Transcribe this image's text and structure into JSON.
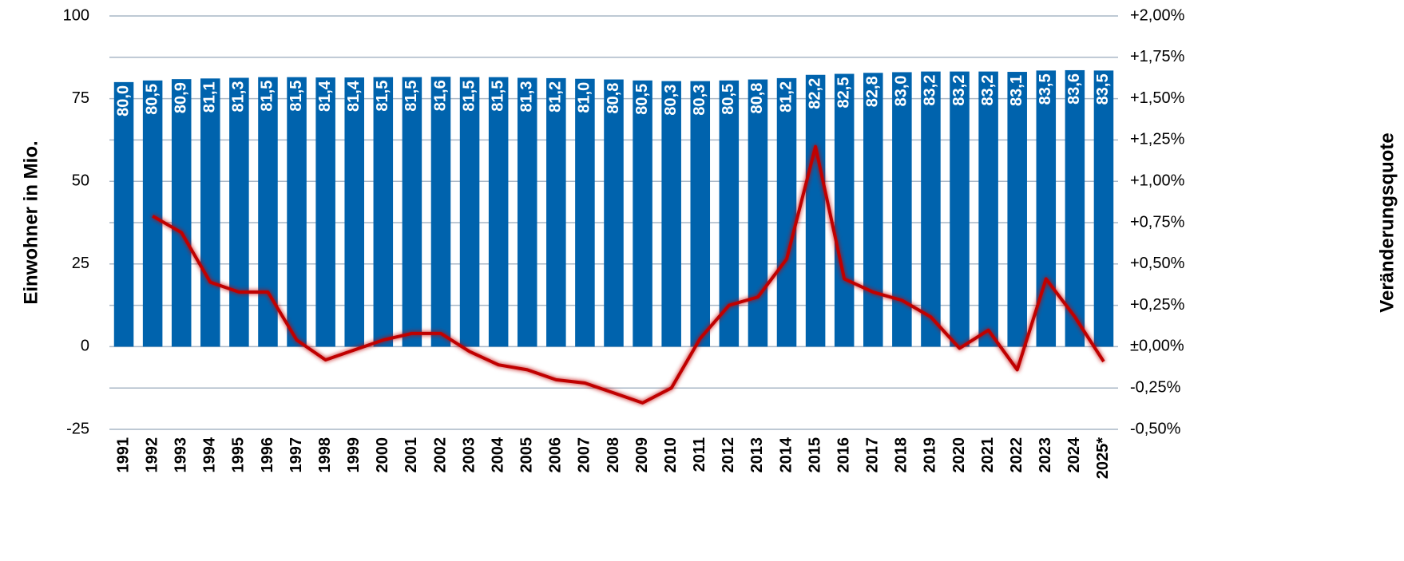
{
  "chart_data": {
    "type": "bar_line",
    "ylabel": "Einwohner in Mio.",
    "y2label": "Veränderungsquote",
    "categories": [
      "1991",
      "1992",
      "1993",
      "1994",
      "1995",
      "1996",
      "1997",
      "1998",
      "1999",
      "2000",
      "2001",
      "2002",
      "2003",
      "2004",
      "2005",
      "2006",
      "2007",
      "2008",
      "2009",
      "2010",
      "2011",
      "2012",
      "2013",
      "2014",
      "2015",
      "2016",
      "2017",
      "2018",
      "2019",
      "2020",
      "2021",
      "2022",
      "2023",
      "2024",
      "2025*"
    ],
    "series": [
      {
        "type": "bar",
        "color": "#0063ad",
        "values": [
          80.0,
          80.5,
          80.9,
          81.1,
          81.3,
          81.5,
          81.5,
          81.4,
          81.4,
          81.5,
          81.5,
          81.6,
          81.5,
          81.5,
          81.3,
          81.2,
          81.0,
          80.8,
          80.5,
          80.3,
          80.3,
          80.5,
          80.8,
          81.2,
          82.2,
          82.5,
          82.8,
          83.0,
          83.2,
          83.2,
          83.2,
          83.1,
          83.5,
          83.6,
          83.5
        ],
        "value_labels": [
          "80,0",
          "80,5",
          "80,9",
          "81,1",
          "81,3",
          "81,5",
          "81,5",
          "81,4",
          "81,4",
          "81,5",
          "81,5",
          "81,6",
          "81,5",
          "81,5",
          "81,3",
          "81,2",
          "81,0",
          "80,8",
          "80,5",
          "80,3",
          "80,3",
          "80,5",
          "80,8",
          "81,2",
          "82,2",
          "82,5",
          "82,8",
          "83,0",
          "83,2",
          "83,2",
          "83,2",
          "83,1",
          "83,5",
          "83,6",
          "83,5"
        ]
      },
      {
        "type": "line",
        "color": "#c00000",
        "axis": "y2",
        "values": [
          null,
          0.79,
          0.69,
          0.39,
          0.33,
          0.33,
          0.04,
          -0.08,
          -0.02,
          0.04,
          0.08,
          0.08,
          -0.03,
          -0.11,
          -0.14,
          -0.2,
          -0.22,
          -0.28,
          -0.34,
          -0.25,
          0.05,
          0.25,
          0.3,
          0.53,
          1.21,
          0.41,
          0.33,
          0.28,
          0.18,
          -0.01,
          0.1,
          -0.14,
          0.41,
          0.18,
          -0.09
        ]
      }
    ],
    "ylim": [
      -25,
      100
    ],
    "yticks": [
      -25,
      0,
      25,
      50,
      75,
      100
    ],
    "y2lim": [
      -0.5,
      2
    ],
    "y2ticks": [
      {
        "value": -0.5,
        "label": "-0,50%"
      },
      {
        "value": -0.25,
        "label": "-0,25%"
      },
      {
        "value": 0,
        "label": "±0,00%"
      },
      {
        "value": 0.25,
        "label": "+0,25%"
      },
      {
        "value": 0.5,
        "label": "+0,50%"
      },
      {
        "value": 0.75,
        "label": "+0,75%"
      },
      {
        "value": 1,
        "label": "+1,00%"
      },
      {
        "value": 1.25,
        "label": "+1,25%"
      },
      {
        "value": 1.5,
        "label": "+1,50%"
      },
      {
        "value": 1.75,
        "label": "+1,75%"
      },
      {
        "value": 2,
        "label": "+2,00%"
      }
    ],
    "grid": true
  }
}
